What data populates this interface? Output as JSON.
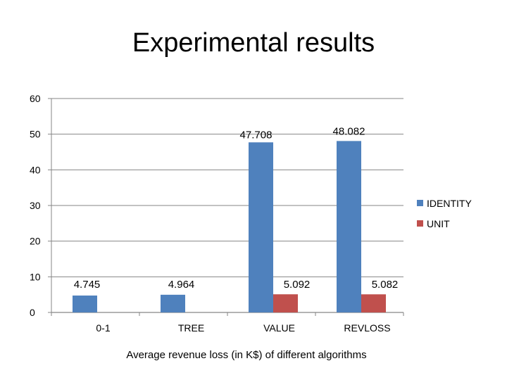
{
  "title": "Experimental results",
  "caption": "Average revenue loss (in K$) of different algorithms",
  "chart_data": {
    "type": "bar",
    "title": "Experimental results",
    "xlabel": "Average revenue loss (in K$) of different algorithms",
    "ylabel": "",
    "categories": [
      "0-1",
      "TREE",
      "VALUE",
      "REVLOSS"
    ],
    "series": [
      {
        "name": "IDENTITY",
        "color": "#4f81bd",
        "values": [
          4.745,
          4.964,
          47.708,
          48.082
        ]
      },
      {
        "name": "UNIT",
        "color": "#c0504d",
        "values": [
          null,
          null,
          5.092,
          5.082
        ]
      }
    ],
    "data_labels": [
      [
        "4.745",
        "4.964",
        "47.708",
        "48.082"
      ],
      [
        null,
        null,
        "5.092",
        "5.082"
      ]
    ],
    "yticks": [
      0,
      10,
      20,
      30,
      40,
      50,
      60
    ],
    "ylim": [
      0,
      60
    ],
    "grid": true,
    "legend": "right"
  }
}
